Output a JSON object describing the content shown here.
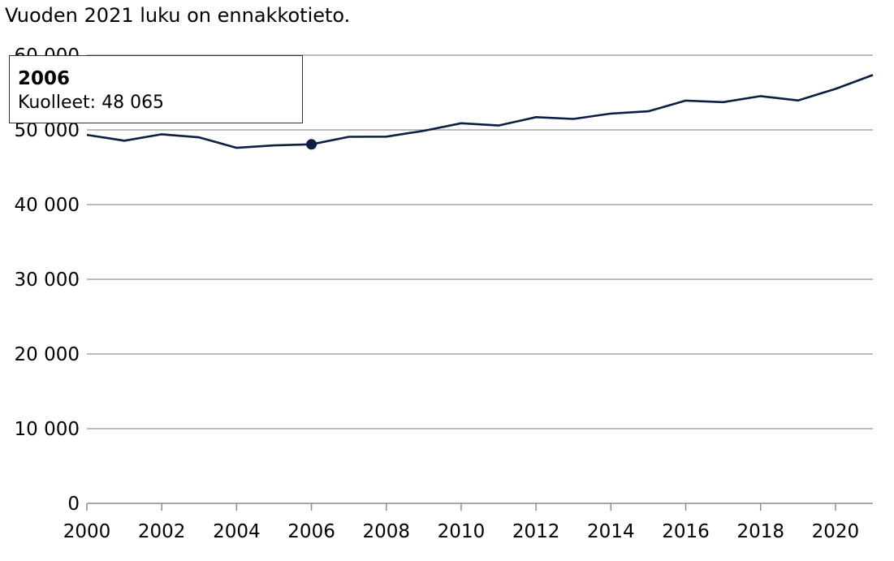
{
  "subtitle": "Vuoden 2021 luku on ennakkotieto.",
  "chart_data": {
    "type": "line",
    "title": "",
    "xlabel": "",
    "ylabel": "",
    "xlim": [
      2000,
      2021
    ],
    "ylim": [
      0,
      60000
    ],
    "grid": true,
    "y_ticks": [
      0,
      10000,
      20000,
      30000,
      40000,
      50000,
      60000
    ],
    "y_tick_labels": [
      "0",
      "10 000",
      "20 000",
      "30 000",
      "40 000",
      "50 000",
      "60 000"
    ],
    "x_ticks": [
      2000,
      2002,
      2004,
      2006,
      2008,
      2010,
      2012,
      2014,
      2016,
      2018,
      2020
    ],
    "x_tick_labels": [
      "2000",
      "2002",
      "2004",
      "2006",
      "2008",
      "2010",
      "2012",
      "2014",
      "2016",
      "2018",
      "2020"
    ],
    "series": [
      {
        "x": [
          2000,
          2001,
          2002,
          2003,
          2004,
          2005,
          2006,
          2007,
          2008,
          2009,
          2010,
          2011,
          2012,
          2013,
          2014,
          2015,
          2016,
          2017,
          2018,
          2019,
          2020,
          2021
        ],
        "values": [
          49339,
          48550,
          49418,
          48996,
          47600,
          47928,
          48065,
          49077,
          49094,
          49883,
          50887,
          50585,
          51707,
          51472,
          52186,
          52492,
          53923,
          53722,
          54527,
          53949,
          55488,
          57343
        ],
        "color": "#0b1f44"
      }
    ],
    "highlight": {
      "x": 2006,
      "value": 48065
    },
    "tooltip": {
      "title": "2006",
      "label": "Kuolleet:",
      "value": "48 065"
    }
  }
}
